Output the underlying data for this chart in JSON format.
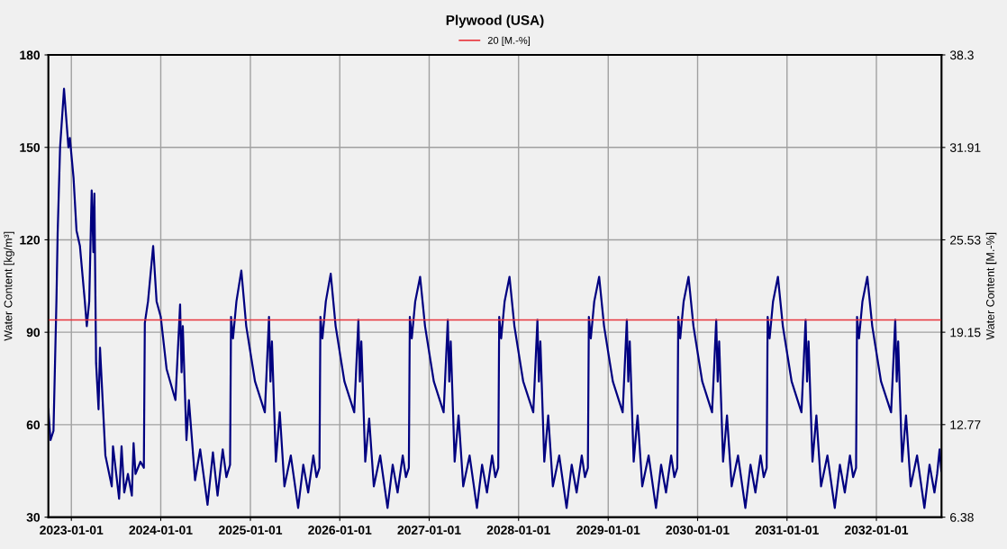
{
  "chart_data": {
    "type": "line",
    "title": "Plywood (USA)",
    "ylabel": "Water Content [kg/m³]",
    "y2label": "Water Content [M.-%]",
    "xlim": [
      "2022-09-29",
      "2032-09-23"
    ],
    "xticks": [
      "2023-01-01",
      "2024-01-01",
      "2025-01-01",
      "2026-01-01",
      "2027-01-01",
      "2028-01-01",
      "2029-01-01",
      "2030-01-01",
      "2031-01-01",
      "2032-01-01"
    ],
    "ylim": [
      30,
      180
    ],
    "yticks": [
      30,
      60,
      90,
      120,
      150,
      180
    ],
    "y2lim": [
      6.38,
      38.3
    ],
    "y2ticks": [
      6.38,
      12.77,
      19.15,
      25.53,
      31.91,
      38.3
    ],
    "grid": true,
    "legend": "top",
    "ref_lines": [
      {
        "axis": "y2",
        "value": 20,
        "label": "20 [M.-%]",
        "color": "#e8343c"
      }
    ],
    "series": [
      {
        "color": "#000080",
        "x": [
          "2022-09-29",
          "2022-10-08",
          "2022-10-20",
          "2022-11-01",
          "2022-11-06",
          "2022-11-16",
          "2022-12-02",
          "2022-12-20",
          "2022-12-26",
          "2023-01-10",
          "2023-01-22",
          "2023-02-05",
          "2023-02-25",
          "2023-03-05",
          "2023-03-15",
          "2023-03-25",
          "2023-04-01",
          "2023-04-05",
          "2023-04-12",
          "2023-04-22",
          "2023-04-28",
          "2023-05-20",
          "2023-06-15",
          "2023-06-20",
          "2023-07-15",
          "2023-07-25",
          "2023-08-05",
          "2023-08-20",
          "2023-09-05",
          "2023-09-12",
          "2023-09-20",
          "2023-10-10",
          "2023-10-24",
          "2023-10-28",
          "2023-11-10",
          "2023-12-01",
          "2023-12-15",
          "2024-01-01",
          "2024-01-25",
          "2024-03-01",
          "2024-03-20",
          "2024-03-26",
          "2024-03-31",
          "2024-04-15",
          "2024-04-25",
          "2024-05-20",
          "2024-06-10",
          "2024-07-10",
          "2024-08-01",
          "2024-08-20",
          "2024-09-10",
          "2024-09-25",
          "2024-10-10",
          "2024-10-14",
          "2024-10-22",
          "2024-11-05",
          "2024-11-25",
          "2024-12-15",
          "2025-01-20",
          "2025-03-01",
          "2025-03-18",
          "2025-03-24",
          "2025-03-30",
          "2025-04-15",
          "2025-05-01",
          "2025-05-20",
          "2025-06-15",
          "2025-07-15",
          "2025-08-05",
          "2025-08-25",
          "2025-09-15",
          "2025-09-28",
          "2025-10-10",
          "2025-10-14",
          "2025-10-22",
          "2025-11-05",
          "2025-11-25",
          "2025-12-15",
          "2026-01-20",
          "2026-03-01",
          "2026-03-18",
          "2026-03-24",
          "2026-03-30",
          "2026-04-15",
          "2026-05-01",
          "2026-05-20",
          "2026-06-15",
          "2026-07-15",
          "2026-08-05",
          "2026-08-25",
          "2026-09-15",
          "2026-09-28",
          "2026-10-10",
          "2026-10-14",
          "2026-10-22",
          "2026-11-05",
          "2026-11-25",
          "2026-12-15",
          "2027-01-20",
          "2027-03-01",
          "2027-03-18",
          "2027-03-24",
          "2027-03-30",
          "2027-04-15",
          "2027-05-01",
          "2027-05-20",
          "2027-06-15",
          "2027-07-15",
          "2027-08-05",
          "2027-08-25",
          "2027-09-15",
          "2027-09-28",
          "2027-10-10",
          "2027-10-14",
          "2027-10-22",
          "2027-11-05",
          "2027-11-25",
          "2027-12-15",
          "2028-01-20",
          "2028-03-01",
          "2028-03-18",
          "2028-03-24",
          "2028-03-30",
          "2028-04-15",
          "2028-05-01",
          "2028-05-20",
          "2028-06-15",
          "2028-07-15",
          "2028-08-05",
          "2028-08-25",
          "2028-09-15",
          "2028-09-28",
          "2028-10-10",
          "2028-10-14",
          "2028-10-22",
          "2028-11-05",
          "2028-11-25",
          "2028-12-15",
          "2029-01-20",
          "2029-03-01",
          "2029-03-18",
          "2029-03-24",
          "2029-03-30",
          "2029-04-15",
          "2029-05-01",
          "2029-05-20",
          "2029-06-15",
          "2029-07-15",
          "2029-08-05",
          "2029-08-25",
          "2029-09-15",
          "2029-09-28",
          "2029-10-10",
          "2029-10-14",
          "2029-10-22",
          "2029-11-05",
          "2029-11-25",
          "2029-12-15",
          "2030-01-20",
          "2030-03-01",
          "2030-03-18",
          "2030-03-24",
          "2030-03-30",
          "2030-04-15",
          "2030-05-01",
          "2030-05-20",
          "2030-06-15",
          "2030-07-15",
          "2030-08-05",
          "2030-08-25",
          "2030-09-15",
          "2030-09-28",
          "2030-10-10",
          "2030-10-14",
          "2030-10-22",
          "2030-11-05",
          "2030-11-25",
          "2030-12-15",
          "2031-01-20",
          "2031-03-01",
          "2031-03-18",
          "2031-03-24",
          "2031-03-30",
          "2031-04-15",
          "2031-05-01",
          "2031-05-20",
          "2031-06-15",
          "2031-07-15",
          "2031-08-05",
          "2031-08-25",
          "2031-09-15",
          "2031-09-28",
          "2031-10-10",
          "2031-10-14",
          "2031-10-22",
          "2031-11-05",
          "2031-11-25",
          "2031-12-15",
          "2032-01-20",
          "2032-03-01",
          "2032-03-18",
          "2032-03-24",
          "2032-03-30",
          "2032-04-15",
          "2032-05-01",
          "2032-05-20",
          "2032-06-15",
          "2032-07-15",
          "2032-08-05",
          "2032-08-25",
          "2032-09-05",
          "2032-09-15",
          "2032-09-22"
        ],
        "values": [
          65,
          55,
          58,
          100,
          122,
          150,
          169,
          150,
          153,
          140,
          123,
          118,
          100,
          92,
          100,
          136,
          116,
          135,
          80,
          65,
          85,
          50,
          40,
          53,
          36,
          53,
          38,
          44,
          37,
          54,
          44,
          48,
          46,
          93,
          100,
          118,
          100,
          95,
          78,
          68,
          99,
          77,
          92,
          55,
          68,
          42,
          52,
          34,
          51,
          37,
          52,
          43,
          47,
          95,
          88,
          100,
          110,
          92,
          74,
          64,
          95,
          74,
          87,
          48,
          64,
          40,
          50,
          33,
          47,
          38,
          50,
          43,
          46,
          95,
          88,
          100,
          109,
          92,
          74,
          64,
          94,
          74,
          87,
          48,
          62,
          40,
          50,
          33,
          47,
          38,
          50,
          43,
          46,
          95,
          88,
          100,
          108,
          92,
          74,
          64,
          94,
          74,
          87,
          48,
          63,
          40,
          50,
          33,
          47,
          38,
          50,
          43,
          46,
          95,
          88,
          100,
          108,
          92,
          74,
          64,
          94,
          74,
          87,
          48,
          63,
          40,
          50,
          33,
          47,
          38,
          50,
          43,
          46,
          95,
          88,
          100,
          108,
          92,
          74,
          64,
          94,
          74,
          87,
          48,
          63,
          40,
          50,
          33,
          47,
          38,
          50,
          43,
          46,
          95,
          88,
          100,
          108,
          92,
          74,
          64,
          94,
          74,
          87,
          48,
          63,
          40,
          50,
          33,
          47,
          38,
          50,
          43,
          46,
          95,
          88,
          100,
          108,
          92,
          74,
          64,
          94,
          74,
          87,
          48,
          63,
          40,
          50,
          33,
          47,
          38,
          50,
          43,
          46,
          95,
          88,
          100,
          108,
          92,
          74,
          64,
          94,
          74,
          87,
          48,
          63,
          40,
          50,
          33,
          47,
          38,
          44,
          52,
          45
        ]
      }
    ]
  }
}
